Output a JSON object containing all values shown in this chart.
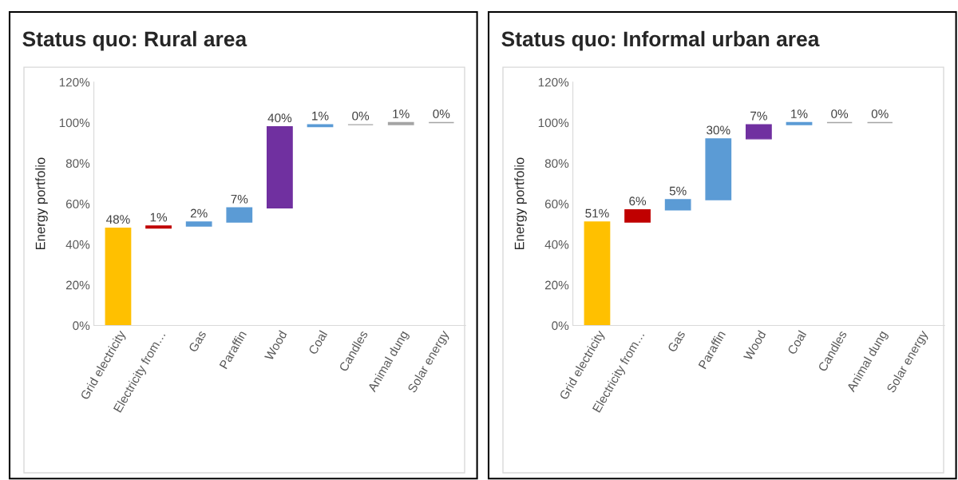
{
  "chart_data": [
    {
      "type": "bar",
      "title": "Status quo: Rural area",
      "ylabel": "Energy portfolio",
      "categories": [
        "Grid electricity",
        "Electricity from…",
        "Gas",
        "Paraffin",
        "Wood",
        "Coal",
        "Candles",
        "Animal dung",
        "Solar energy"
      ],
      "values": [
        48,
        1,
        2,
        7,
        40,
        1,
        0,
        1,
        0
      ],
      "base": [
        0,
        48,
        49,
        51,
        58,
        98,
        99,
        99,
        100
      ],
      "colors": [
        "#ffc000",
        "#c00000",
        "#5b9bd5",
        "#5b9bd5",
        "#7030a0",
        "#5b9bd5",
        "#a5a5a5",
        "#a5a5a5",
        "#a5a5a5"
      ],
      "value_labels": [
        "48%",
        "1%",
        "2%",
        "7%",
        "40%",
        "1%",
        "0%",
        "1%",
        "0%"
      ],
      "ylim": [
        0,
        120
      ],
      "yticks": [
        {
          "value": 0,
          "label": "0%"
        },
        {
          "value": 20,
          "label": "20%"
        },
        {
          "value": 40,
          "label": "40%"
        },
        {
          "value": 60,
          "label": "60%"
        },
        {
          "value": 80,
          "label": "80%"
        },
        {
          "value": 100,
          "label": "100%"
        },
        {
          "value": 120,
          "label": "120%"
        }
      ],
      "grid": false,
      "legend": false
    },
    {
      "type": "bar",
      "title": "Status quo: Informal urban area",
      "ylabel": "Energy portfolio",
      "categories": [
        "Grid electricity",
        "Electricity from…",
        "Gas",
        "Paraffin",
        "Wood",
        "Coal",
        "Candles",
        "Animal dung",
        "Solar energy"
      ],
      "values": [
        51,
        6,
        5,
        30,
        7,
        1,
        0,
        0,
        null
      ],
      "base": [
        0,
        51,
        57,
        62,
        92,
        99,
        100,
        100,
        null
      ],
      "colors": [
        "#ffc000",
        "#c00000",
        "#5b9bd5",
        "#5b9bd5",
        "#7030a0",
        "#5b9bd5",
        "#a5a5a5",
        "#a5a5a5",
        "#a5a5a5"
      ],
      "value_labels": [
        "51%",
        "6%",
        "5%",
        "30%",
        "7%",
        "1%",
        "0%",
        "0%",
        null
      ],
      "ylim": [
        0,
        120
      ],
      "yticks": [
        {
          "value": 0,
          "label": "0%"
        },
        {
          "value": 20,
          "label": "20%"
        },
        {
          "value": 40,
          "label": "40%"
        },
        {
          "value": 60,
          "label": "60%"
        },
        {
          "value": 80,
          "label": "80%"
        },
        {
          "value": 100,
          "label": "100%"
        },
        {
          "value": 120,
          "label": "120%"
        }
      ],
      "grid": false,
      "legend": false
    }
  ]
}
